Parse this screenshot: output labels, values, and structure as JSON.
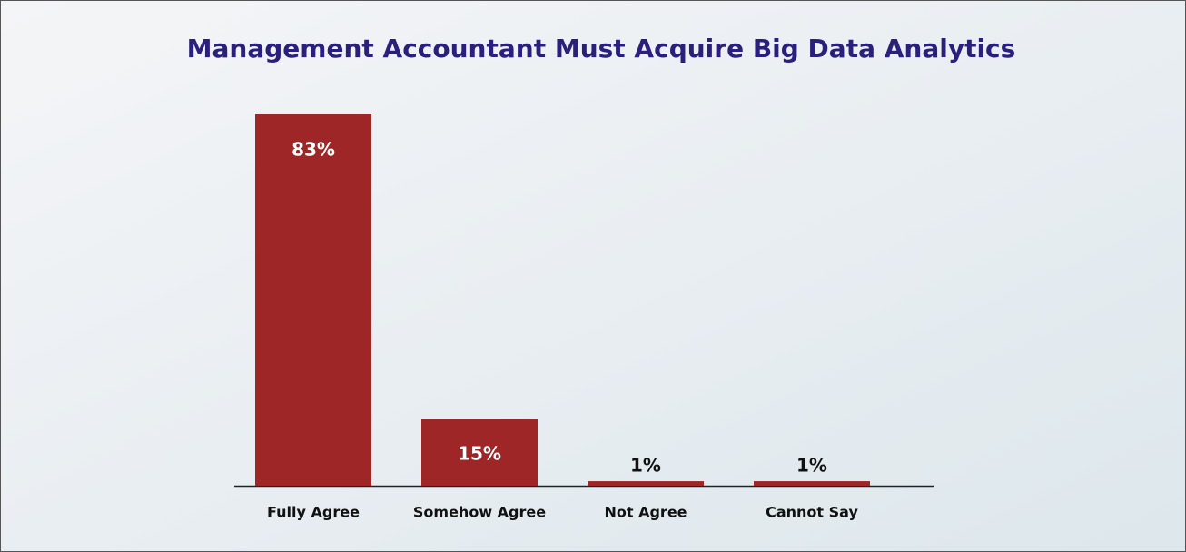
{
  "chart_data": {
    "type": "bar",
    "title": "Management Accountant Must Acquire Big Data Analytics",
    "categories": [
      "Fully Agree",
      "Somehow Agree",
      "Not Agree",
      "Cannot Say"
    ],
    "values": [
      83,
      15,
      1,
      1
    ],
    "value_labels": [
      "83%",
      "15%",
      "1%",
      "1%"
    ],
    "color": "#9e2626"
  }
}
